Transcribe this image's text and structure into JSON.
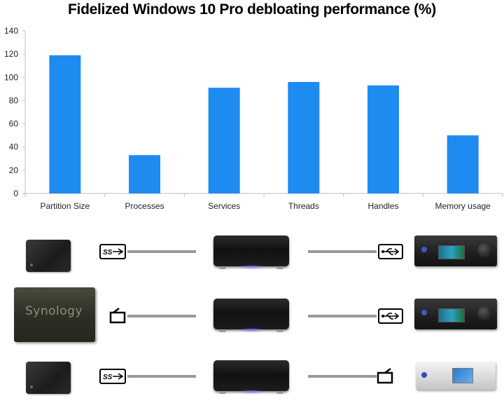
{
  "chart_data": {
    "type": "bar",
    "title": "Fidelized Windows 10 Pro debloating performance (%)",
    "categories": [
      "Partition Size",
      "Processes",
      "Services",
      "Threads",
      "Handles",
      "Memory usage"
    ],
    "values": [
      119,
      33,
      91,
      96,
      93,
      50
    ],
    "xlabel": "",
    "ylabel": "",
    "ylim": [
      0,
      140
    ],
    "yticks": [
      0,
      20,
      40,
      60,
      80,
      100,
      120,
      140
    ],
    "grid": false,
    "bar_color": "#1E8BF0",
    "axis_color": "#BFBFBF"
  },
  "diagram": {
    "rows": [
      {
        "source": "external-hdd",
        "source_link": "ss-usb-icon",
        "target_link": "usb-icon",
        "target": "dac-black"
      },
      {
        "source": "synology-nas",
        "source_link": "ethernet-icon",
        "target_link": "usb-icon",
        "target": "dac-black"
      },
      {
        "source": "external-hdd",
        "source_link": "ss-usb-icon",
        "target_link": "ethernet-icon",
        "target": "dac-silver"
      }
    ],
    "nas_label": "Synology",
    "usb3_label": "SS",
    "cable_color": "#9A9A9A"
  }
}
